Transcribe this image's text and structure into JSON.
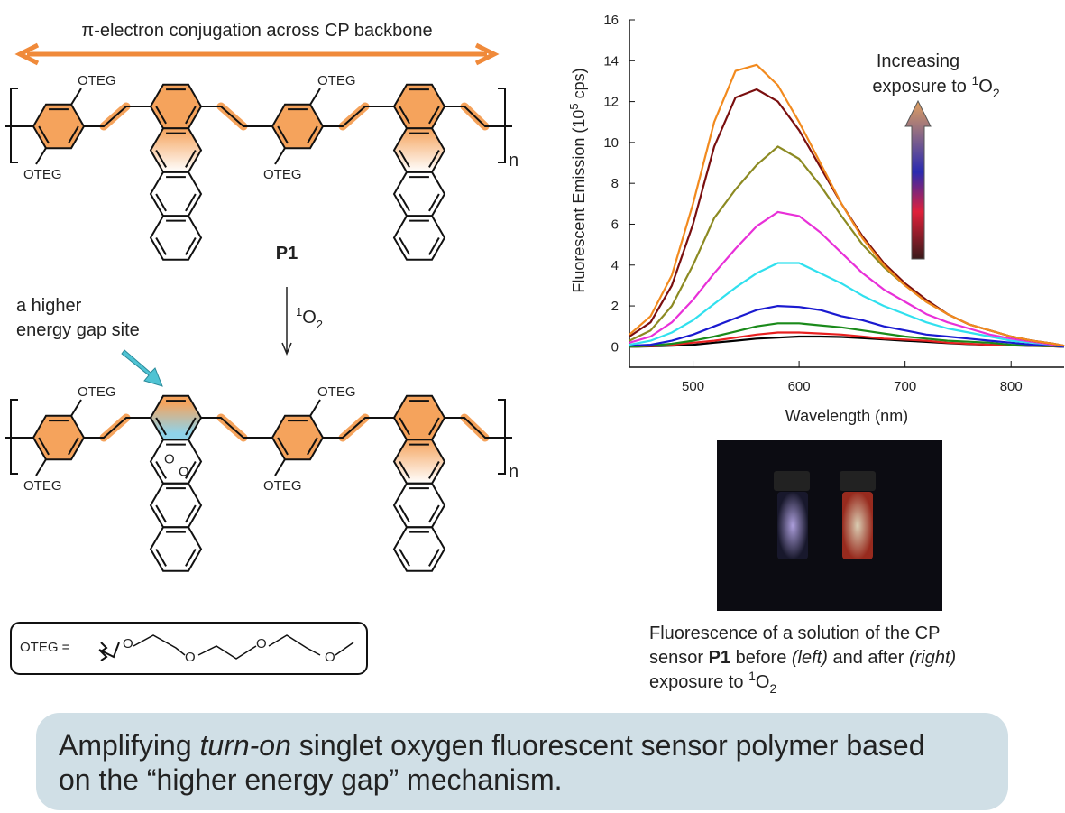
{
  "chart_data": {
    "type": "line",
    "xlabel": "Wavelength (nm)",
    "ylabel": [
      "Fluorescent Emission (10",
      "5",
      " cps)"
    ],
    "annotation": [
      "Increasing",
      "exposure to ",
      "1",
      "O",
      "2"
    ],
    "x": [
      440,
      460,
      480,
      500,
      520,
      540,
      560,
      580,
      600,
      620,
      640,
      660,
      680,
      700,
      720,
      740,
      760,
      780,
      800,
      820,
      840,
      850
    ],
    "xlim": [
      440,
      850
    ],
    "xticks": [
      500,
      600,
      700,
      800
    ],
    "ylim": [
      -1,
      16
    ],
    "yticks": [
      0,
      2,
      4,
      6,
      8,
      10,
      12,
      14,
      16
    ],
    "series": [
      {
        "color": "#000000",
        "values": [
          0,
          0.02,
          0.05,
          0.1,
          0.2,
          0.3,
          0.4,
          0.45,
          0.5,
          0.5,
          0.48,
          0.42,
          0.36,
          0.3,
          0.24,
          0.18,
          0.13,
          0.1,
          0.07,
          0.04,
          0.02,
          0
        ]
      },
      {
        "color": "#e82020",
        "values": [
          0,
          0.03,
          0.1,
          0.2,
          0.3,
          0.45,
          0.6,
          0.7,
          0.7,
          0.65,
          0.6,
          0.5,
          0.4,
          0.35,
          0.3,
          0.2,
          0.15,
          0.1,
          0.08,
          0.05,
          0.02,
          0
        ]
      },
      {
        "color": "#1a8a1a",
        "values": [
          0,
          0.05,
          0.15,
          0.3,
          0.5,
          0.75,
          1.0,
          1.15,
          1.15,
          1.05,
          0.95,
          0.8,
          0.65,
          0.5,
          0.4,
          0.3,
          0.25,
          0.2,
          0.1,
          0.05,
          0.03,
          0
        ]
      },
      {
        "color": "#1a1ad0",
        "values": [
          0.05,
          0.1,
          0.3,
          0.6,
          1.0,
          1.4,
          1.8,
          2.0,
          1.95,
          1.8,
          1.5,
          1.3,
          1.0,
          0.8,
          0.6,
          0.5,
          0.4,
          0.3,
          0.2,
          0.1,
          0.05,
          0
        ]
      },
      {
        "color": "#30e0ee",
        "values": [
          0.1,
          0.3,
          0.7,
          1.3,
          2.1,
          2.9,
          3.6,
          4.1,
          4.1,
          3.6,
          3.1,
          2.5,
          2.0,
          1.6,
          1.2,
          0.9,
          0.7,
          0.5,
          0.3,
          0.2,
          0.1,
          0.05
        ]
      },
      {
        "color": "#e830d8",
        "values": [
          0.2,
          0.5,
          1.2,
          2.3,
          3.6,
          4.8,
          5.9,
          6.6,
          6.4,
          5.6,
          4.6,
          3.6,
          2.8,
          2.2,
          1.6,
          1.2,
          0.9,
          0.6,
          0.4,
          0.25,
          0.1,
          0.05
        ]
      },
      {
        "color": "#8c8a22",
        "values": [
          0.3,
          0.8,
          2.0,
          4.0,
          6.3,
          7.7,
          8.9,
          9.8,
          9.2,
          7.9,
          6.4,
          5.0,
          3.9,
          3.0,
          2.2,
          1.6,
          1.1,
          0.8,
          0.5,
          0.3,
          0.15,
          0.05
        ]
      },
      {
        "color": "#7a0f0f",
        "values": [
          0.5,
          1.2,
          3.0,
          6.0,
          9.8,
          12.2,
          12.6,
          12.0,
          10.6,
          8.8,
          7.0,
          5.4,
          4.1,
          3.1,
          2.3,
          1.6,
          1.1,
          0.8,
          0.5,
          0.3,
          0.15,
          0.05
        ]
      },
      {
        "color": "#f28a1e",
        "values": [
          0.6,
          1.5,
          3.5,
          7.0,
          11.0,
          13.5,
          13.8,
          12.8,
          11.0,
          9.0,
          7.0,
          5.3,
          4.0,
          3.0,
          2.2,
          1.6,
          1.1,
          0.8,
          0.5,
          0.3,
          0.15,
          0.05
        ]
      }
    ]
  },
  "figure": {
    "conjugation_label": "π-electron conjugation across CP backbone",
    "substituent": "OTEG",
    "repeat": "n",
    "polymer": "P1",
    "reagent": [
      "1",
      "O",
      "2"
    ],
    "site_label": [
      "a higher",
      "energy gap site"
    ],
    "peroxide_o": "O",
    "legend_box": {
      "label": "OTEG =",
      "atom": "O"
    },
    "photo_caption": [
      "Fluorescence of a solution of the CP",
      "sensor ",
      "P1",
      " before ",
      "(left)",
      " and after ",
      "(right)",
      "exposure to ",
      "1",
      "O",
      "2"
    ],
    "summary": [
      "Amplifying ",
      "turn-on",
      " singlet oxygen fluorescent sensor polymer based",
      "on the “higher energy gap” mechanism."
    ]
  }
}
